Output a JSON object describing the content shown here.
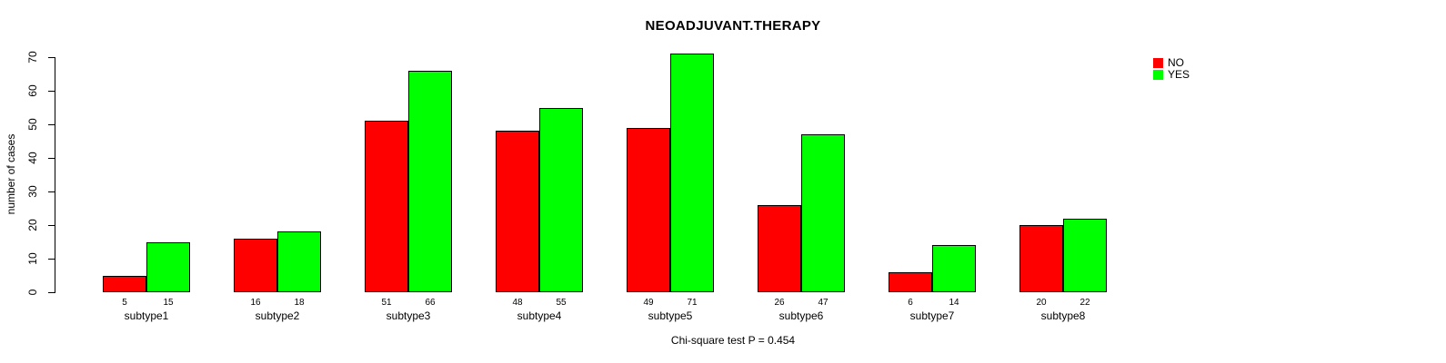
{
  "chart_data": {
    "type": "bar",
    "title": "NEOADJUVANT.THERAPY",
    "ylabel": "number of cases",
    "xlabel": "",
    "ylim": [
      0,
      70
    ],
    "yticks": [
      0,
      10,
      20,
      30,
      40,
      50,
      60,
      70
    ],
    "grid": false,
    "legend_position": "top-right",
    "categories": [
      "subtype1",
      "subtype2",
      "subtype3",
      "subtype4",
      "subtype5",
      "subtype6",
      "subtype7",
      "subtype8"
    ],
    "series": [
      {
        "name": "NO",
        "color": "#ff0000",
        "values": [
          5,
          16,
          51,
          48,
          49,
          26,
          6,
          20
        ]
      },
      {
        "name": "YES",
        "color": "#00ff00",
        "values": [
          15,
          18,
          66,
          55,
          71,
          47,
          14,
          22
        ]
      }
    ],
    "bar_value_labels_shown": true,
    "annotation": "Chi-square test P = 0.454"
  }
}
